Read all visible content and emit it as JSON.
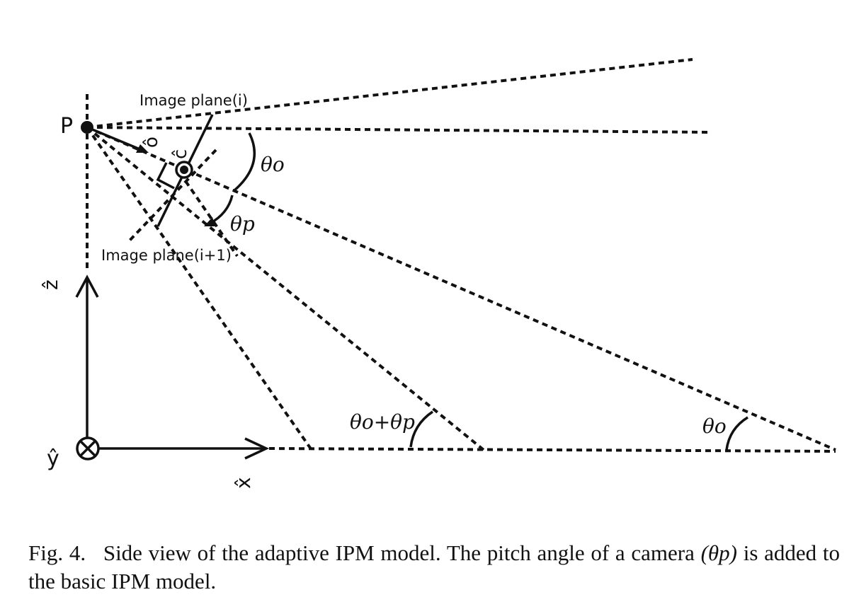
{
  "labels": {
    "point": "P",
    "image_plane_i": "Image plane(i)",
    "image_plane_i1": "Image plane(i+1)",
    "o_hat": "ô",
    "c_hat": "ĉ",
    "z_hat": "ẑ",
    "y_hat": "ŷ",
    "x_hat": "x̂",
    "theta_o_top": "θo",
    "theta_p": "θp",
    "theta_sum": "θo+θp",
    "theta_o_bottom": "θo"
  },
  "caption": {
    "figure_number": "Fig. 4.",
    "text_1": "Side view of the adaptive IPM model. The pitch angle of a camera",
    "math": "(θp)",
    "text_2": "is added to the basic IPM model."
  }
}
